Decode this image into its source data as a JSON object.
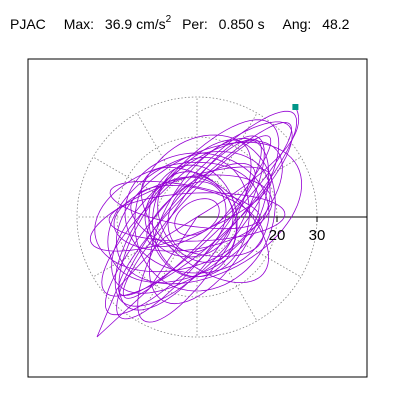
{
  "header": {
    "station": "PJAC",
    "max_label": "Max:",
    "max_value": "36.9",
    "max_unit": "cm/s",
    "max_unit_power": "2",
    "per_label": "Per:",
    "per_value": "0.850 s",
    "ang_label": "Ang:",
    "ang_value": "48.2"
  },
  "colors": {
    "trace": "#9400d3",
    "marker": "#009688",
    "grid": "#808080",
    "axis": "#000000"
  },
  "chart_data": {
    "type": "line",
    "kind": "polar particle-motion",
    "rings": [
      10,
      20,
      30
    ],
    "ring_spokes_deg": [
      0,
      30,
      60,
      90,
      120,
      150,
      180,
      210,
      240,
      270,
      300,
      330
    ],
    "r_max": 40,
    "tick_labels": [
      "20",
      "30"
    ],
    "peak": {
      "x": 24.6,
      "y": 27.5
    },
    "orbits": [
      {
        "cx": 0,
        "cy": 0,
        "a": 27,
        "b": 5,
        "rot": 48
      },
      {
        "cx": 1,
        "cy": 1,
        "a": 34,
        "b": 8,
        "rot": 47
      },
      {
        "cx": 0,
        "cy": 0,
        "a": 26,
        "b": 12,
        "rot": 40
      },
      {
        "cx": -2,
        "cy": 0,
        "a": 22,
        "b": 14,
        "rot": 30
      },
      {
        "cx": 0,
        "cy": 1,
        "a": 18,
        "b": 15,
        "rot": 0
      },
      {
        "cx": -3,
        "cy": -2,
        "a": 25,
        "b": 10,
        "rot": 55
      },
      {
        "cx": 2,
        "cy": 2,
        "a": 30,
        "b": 6,
        "rot": 45
      },
      {
        "cx": -1,
        "cy": 1,
        "a": 20,
        "b": 9,
        "rot": 10
      },
      {
        "cx": 0,
        "cy": -1,
        "a": 17,
        "b": 8,
        "rot": 165
      },
      {
        "cx": 1,
        "cy": 0,
        "a": 15,
        "b": 12,
        "rot": 80
      },
      {
        "cx": -4,
        "cy": 2,
        "a": 24,
        "b": 7,
        "rot": 20
      },
      {
        "cx": 3,
        "cy": -1,
        "a": 23,
        "b": 11,
        "rot": 60
      },
      {
        "cx": 0,
        "cy": 0,
        "a": 12,
        "b": 9,
        "rot": 120
      },
      {
        "cx": -2,
        "cy": -3,
        "a": 28,
        "b": 7,
        "rot": 52
      },
      {
        "cx": 1,
        "cy": 3,
        "a": 16,
        "b": 6,
        "rot": 35
      },
      {
        "cx": 0,
        "cy": 0,
        "a": 9,
        "b": 7,
        "rot": 70
      },
      {
        "cx": -5,
        "cy": 0,
        "a": 21,
        "b": 13,
        "rot": 15
      },
      {
        "cx": 2,
        "cy": -2,
        "a": 19,
        "b": 10,
        "rot": 140
      },
      {
        "cx": 0,
        "cy": 2,
        "a": 31,
        "b": 9,
        "rot": 42
      },
      {
        "cx": -1,
        "cy": -1,
        "a": 14,
        "b": 11,
        "rot": 95
      },
      {
        "cx": 0,
        "cy": 0,
        "a": 6,
        "b": 4,
        "rot": 30
      },
      {
        "cx": 3,
        "cy": 1,
        "a": 25,
        "b": 15,
        "rot": 28
      },
      {
        "cx": -3,
        "cy": 3,
        "a": 19,
        "b": 5,
        "rot": 170
      },
      {
        "cx": 1,
        "cy": -3,
        "a": 27,
        "b": 8,
        "rot": 58
      },
      {
        "cx": 0,
        "cy": 0,
        "a": 22,
        "b": 6,
        "rot": 2
      },
      {
        "cx": 0,
        "cy": 1,
        "a": 29,
        "b": 11,
        "rot": 50
      },
      {
        "cx": -2,
        "cy": 0,
        "a": 11,
        "b": 10,
        "rot": 0
      },
      {
        "cx": 2,
        "cy": 1,
        "a": 20,
        "b": 17,
        "rot": 65
      }
    ],
    "tail": [
      [
        0,
        0
      ],
      [
        -12,
        -18
      ],
      [
        -25,
        -30
      ],
      [
        -20,
        -18
      ],
      [
        -8,
        -5
      ],
      [
        0,
        0
      ]
    ]
  }
}
